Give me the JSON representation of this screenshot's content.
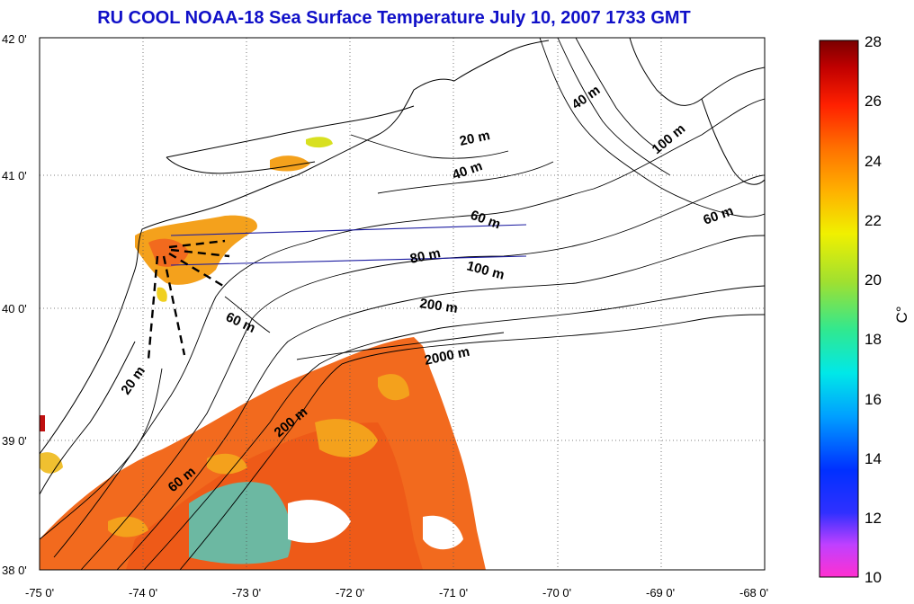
{
  "title": "RU COOL  NOAA-18 Sea Surface Temperature July 10, 2007 1733 GMT",
  "lat_ticks": [
    "42 0'",
    "41 0'",
    "40 0'",
    "39 0'",
    "38 0'"
  ],
  "lon_ticks": [
    "-75 0'",
    "-74 0'",
    "-73 0'",
    "-72 0'",
    "-71 0'",
    "-70 0'",
    "-69 0'",
    "-68 0'"
  ],
  "depth_labels": [
    "20 m",
    "40 m",
    "40 m",
    "60 m",
    "60 m",
    "80 m",
    "100 m",
    "100 m",
    "200 m",
    "2000 m",
    "60 m",
    "20 m",
    "200 m",
    "60 m"
  ],
  "colorbar": {
    "ticks": [
      "28",
      "26",
      "24",
      "22",
      "20",
      "18",
      "16",
      "14",
      "12",
      "10"
    ],
    "label": "C°",
    "min": 10,
    "max": 28
  },
  "colors": {
    "title": "#1010c8",
    "warm_sst": "#f26a1e",
    "mid_sst": "#f4a11c",
    "cool_sst": "#40e0d0",
    "transect": "#1a1aa0"
  }
}
